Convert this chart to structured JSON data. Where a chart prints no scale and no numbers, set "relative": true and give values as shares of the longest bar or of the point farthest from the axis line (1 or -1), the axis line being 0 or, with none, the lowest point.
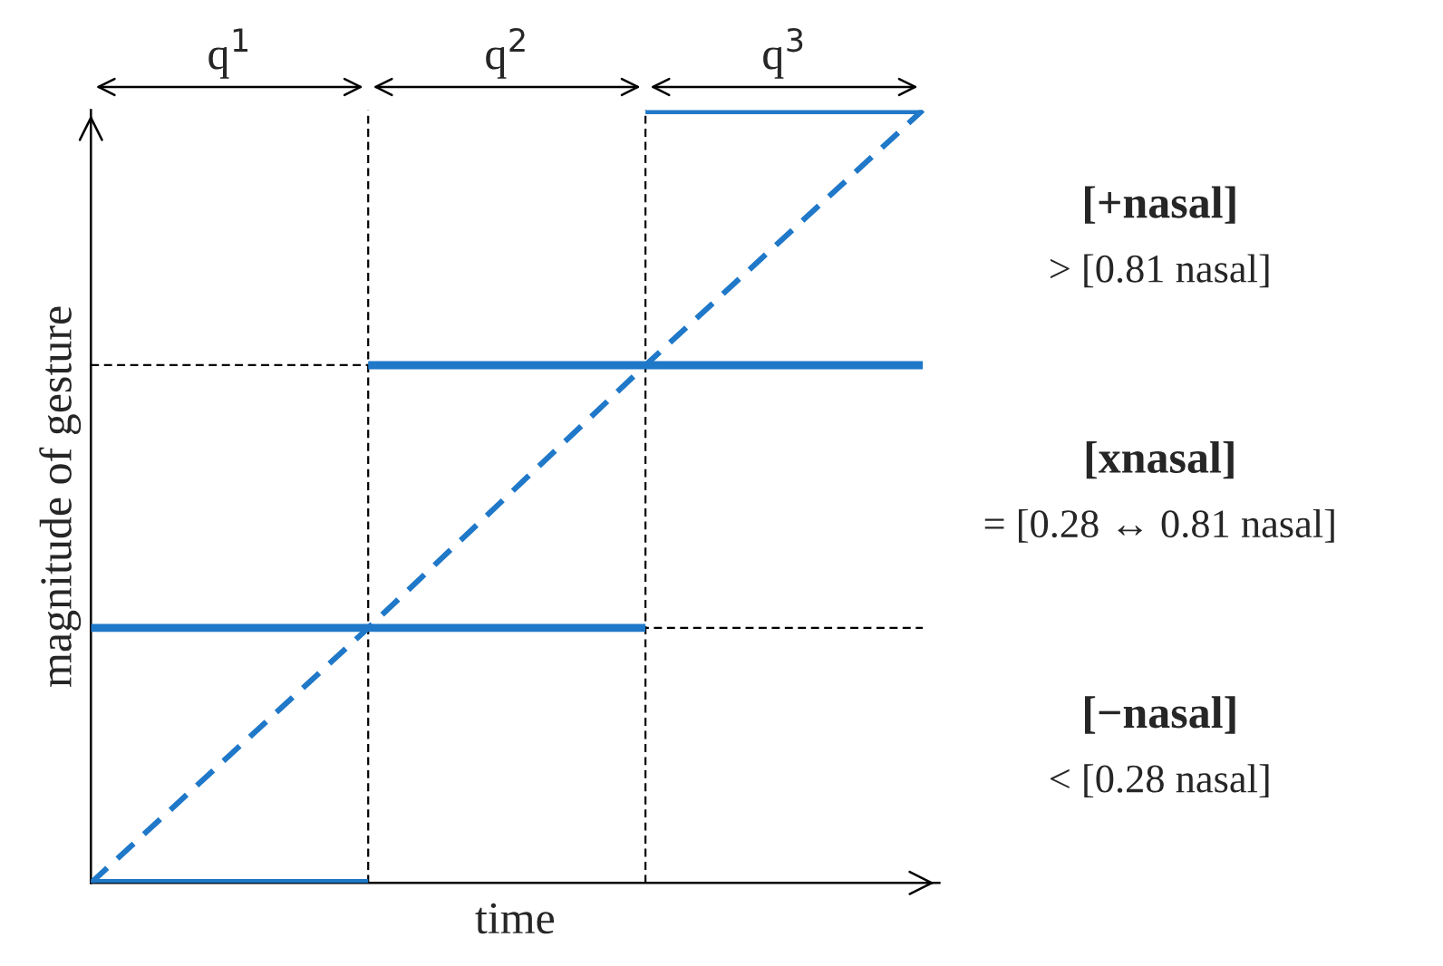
{
  "chart_data": {
    "type": "line",
    "relative": true,
    "xlabel": "time",
    "ylabel": "magnitude of gesture",
    "categories": [
      null,
      null,
      null,
      null
    ],
    "legend": false,
    "series": [
      {
        "color": "#1f78c8",
        "line_style": "solid",
        "values": [
          0,
          0,
          null,
          null
        ]
      },
      {
        "color": "#1f78c8",
        "line_style": "solid",
        "values": [
          0.33,
          0.33,
          0.33,
          null
        ]
      },
      {
        "color": "#1f78c8",
        "line_style": "solid",
        "values": [
          null,
          0.67,
          0.67,
          0.67
        ]
      },
      {
        "color": "#1f78c8",
        "line_style": "solid",
        "values": [
          null,
          null,
          1,
          1
        ]
      },
      {
        "color": "#1f78c8",
        "line_style": "dashed",
        "values": [
          0,
          0.33,
          0.67,
          1
        ]
      }
    ],
    "ref_lines": [
      {
        "axis": "y",
        "value": 0.33,
        "color": "#000000",
        "line_style": "dashed"
      },
      {
        "axis": "y",
        "value": 0.67,
        "color": "#000000",
        "line_style": "dashed"
      }
    ],
    "annotations": [
      "q$^{1}$",
      "q$^{2}$",
      "q$^{3}$",
      "[+nasal]",
      "> [0.81 nasal]",
      "[xnasal]",
      "= [0.28 ↔ 0.81 nasal]",
      "[−nasal]",
      "< [0.28 nasal]"
    ]
  }
}
